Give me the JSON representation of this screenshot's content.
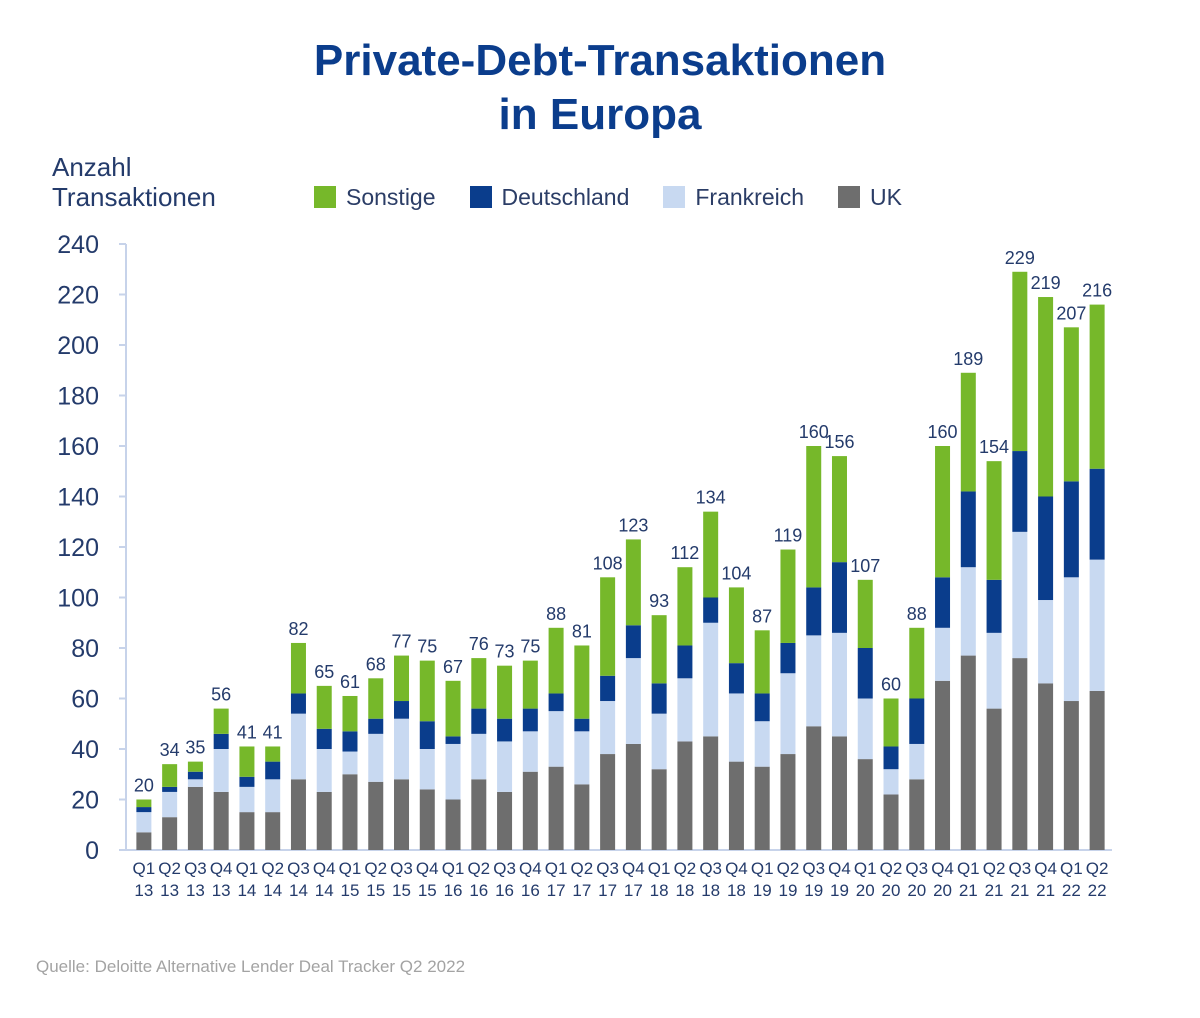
{
  "title_line1": "Private-Debt-Transaktionen",
  "title_line2": "in Europa",
  "ylabel_line1": "Anzahl",
  "ylabel_line2": "Transaktionen",
  "source": "Quelle: Deloitte Alternative Lender Deal Tracker Q2 2022",
  "colors": {
    "sonstige": "#76b82a",
    "deutschland": "#0a3d8c",
    "frankreich": "#c8d9f1",
    "uk": "#6e6e6e",
    "axis": "#c7d3ea",
    "text": "#243b6b"
  },
  "legend": [
    {
      "label": "Sonstige",
      "color_key": "sonstige"
    },
    {
      "label": "Deutschland",
      "color_key": "deutschland"
    },
    {
      "label": "Frankreich",
      "color_key": "frankreich"
    },
    {
      "label": "UK",
      "color_key": "uk"
    }
  ],
  "chart_data": {
    "type": "bar",
    "stacked": true,
    "ylim": [
      0,
      240
    ],
    "yticks": [
      0,
      20,
      40,
      60,
      80,
      100,
      120,
      140,
      160,
      180,
      200,
      220,
      240
    ],
    "grid": false,
    "legend_position": "top",
    "categories": [
      [
        "Q1",
        "13"
      ],
      [
        "Q2",
        "13"
      ],
      [
        "Q3",
        "13"
      ],
      [
        "Q4",
        "13"
      ],
      [
        "Q1",
        "14"
      ],
      [
        "Q2",
        "14"
      ],
      [
        "Q3",
        "14"
      ],
      [
        "Q4",
        "14"
      ],
      [
        "Q1",
        "15"
      ],
      [
        "Q2",
        "15"
      ],
      [
        "Q3",
        "15"
      ],
      [
        "Q4",
        "15"
      ],
      [
        "Q1",
        "16"
      ],
      [
        "Q2",
        "16"
      ],
      [
        "Q3",
        "16"
      ],
      [
        "Q4",
        "16"
      ],
      [
        "Q1",
        "17"
      ],
      [
        "Q2",
        "17"
      ],
      [
        "Q3",
        "17"
      ],
      [
        "Q4",
        "17"
      ],
      [
        "Q1",
        "18"
      ],
      [
        "Q2",
        "18"
      ],
      [
        "Q3",
        "18"
      ],
      [
        "Q4",
        "18"
      ],
      [
        "Q1",
        "19"
      ],
      [
        "Q2",
        "19"
      ],
      [
        "Q3",
        "19"
      ],
      [
        "Q4",
        "19"
      ],
      [
        "Q1",
        "20"
      ],
      [
        "Q2",
        "20"
      ],
      [
        "Q3",
        "20"
      ],
      [
        "Q4",
        "20"
      ],
      [
        "Q1",
        "21"
      ],
      [
        "Q2",
        "21"
      ],
      [
        "Q3",
        "21"
      ],
      [
        "Q4",
        "21"
      ],
      [
        "Q1",
        "22"
      ],
      [
        "Q2",
        "22"
      ]
    ],
    "series": [
      {
        "name": "UK",
        "color_key": "uk",
        "values": [
          7,
          13,
          25,
          23,
          15,
          15,
          28,
          23,
          30,
          27,
          28,
          24,
          20,
          28,
          23,
          31,
          33,
          26,
          38,
          42,
          32,
          43,
          45,
          35,
          33,
          38,
          49,
          45,
          36,
          22,
          28,
          67,
          77,
          56,
          76,
          66,
          59,
          63
        ]
      },
      {
        "name": "Frankreich",
        "color_key": "frankreich",
        "values": [
          8,
          10,
          3,
          17,
          10,
          13,
          26,
          17,
          9,
          19,
          24,
          16,
          22,
          18,
          20,
          16,
          22,
          21,
          21,
          34,
          22,
          25,
          45,
          27,
          18,
          32,
          36,
          41,
          24,
          10,
          14,
          21,
          35,
          30,
          50,
          33,
          49,
          52
        ]
      },
      {
        "name": "Deutschland",
        "color_key": "deutschland",
        "values": [
          2,
          2,
          3,
          6,
          4,
          7,
          8,
          8,
          8,
          6,
          7,
          11,
          3,
          10,
          9,
          9,
          7,
          5,
          10,
          13,
          12,
          13,
          10,
          12,
          11,
          12,
          19,
          28,
          20,
          9,
          18,
          20,
          30,
          21,
          32,
          41,
          38,
          36
        ]
      },
      {
        "name": "Sonstige",
        "color_key": "sonstige",
        "values": [
          3,
          9,
          4,
          10,
          12,
          6,
          20,
          17,
          14,
          16,
          18,
          24,
          22,
          20,
          21,
          19,
          26,
          29,
          39,
          34,
          27,
          31,
          34,
          30,
          25,
          37,
          56,
          42,
          27,
          19,
          28,
          52,
          47,
          47,
          71,
          79,
          61,
          65
        ]
      }
    ],
    "totals": [
      20,
      34,
      35,
      56,
      41,
      41,
      82,
      65,
      61,
      68,
      77,
      75,
      67,
      76,
      73,
      75,
      88,
      81,
      108,
      123,
      93,
      112,
      134,
      104,
      87,
      119,
      160,
      156,
      107,
      60,
      88,
      160,
      189,
      154,
      229,
      219,
      207,
      216
    ]
  }
}
